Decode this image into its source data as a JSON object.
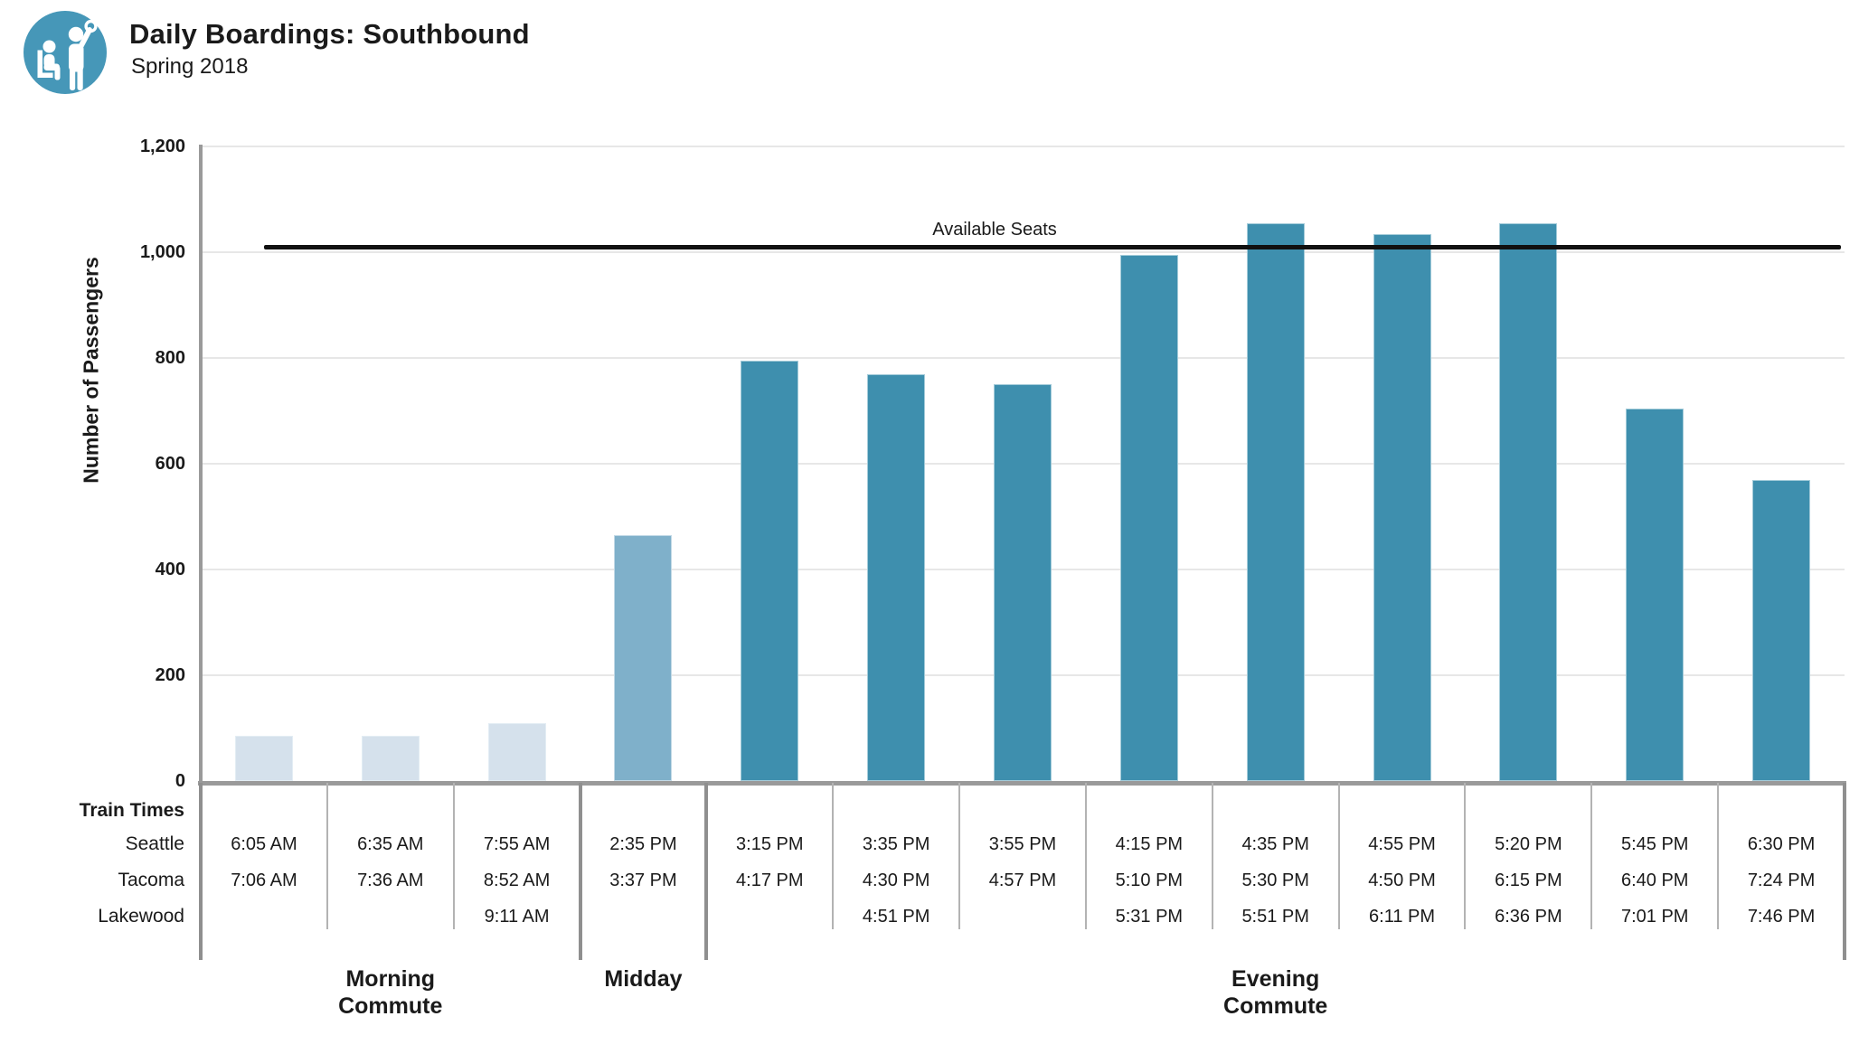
{
  "header": {
    "title": "Daily Boardings: Southbound",
    "subtitle": "Spring 2018",
    "logo_icon": "transit-passengers-icon"
  },
  "colors": {
    "bar_dark": "#3e8fae",
    "bar_medium": "#7fb0ca",
    "bar_light": "#d5e1ec",
    "logo_blue": "#4697b8",
    "reference_line": "#111111",
    "axis_gray": "#9a9a9a",
    "grid_gray": "#e7e7e7"
  },
  "table": {
    "corner_label": "Train Times",
    "row_labels": [
      "Seattle",
      "Tacoma",
      "Lakewood"
    ]
  },
  "chart_data": {
    "type": "bar",
    "title": "Daily Boardings: Southbound",
    "subtitle": "Spring 2018",
    "ylabel": "Number of Passengers",
    "xlabel": "Train Times",
    "ylim": [
      0,
      1200
    ],
    "ytick_step": 200,
    "ytick_labels": [
      "0",
      "200",
      "400",
      "600",
      "800",
      "1,000",
      "1,200"
    ],
    "grid": true,
    "legend": "none",
    "reference_line": {
      "label": "Available Seats",
      "value": 1010
    },
    "groups": [
      {
        "label_lines": [
          "Morning",
          "Commute"
        ],
        "bar_count": 3
      },
      {
        "label_lines": [
          "Midday"
        ],
        "bar_count": 1
      },
      {
        "label_lines": [
          "Evening",
          "Commute"
        ],
        "bar_count": 9
      }
    ],
    "bars": [
      {
        "seattle": "6:05 AM",
        "tacoma": "7:06 AM",
        "lakewood": "",
        "value": 85,
        "shade": "light"
      },
      {
        "seattle": "6:35 AM",
        "tacoma": "7:36 AM",
        "lakewood": "",
        "value": 85,
        "shade": "light"
      },
      {
        "seattle": "7:55 AM",
        "tacoma": "8:52 AM",
        "lakewood": "9:11 AM",
        "value": 110,
        "shade": "light"
      },
      {
        "seattle": "2:35 PM",
        "tacoma": "3:37 PM",
        "lakewood": "",
        "value": 465,
        "shade": "medium"
      },
      {
        "seattle": "3:15 PM",
        "tacoma": "4:17 PM",
        "lakewood": "",
        "value": 795,
        "shade": "dark"
      },
      {
        "seattle": "3:35 PM",
        "tacoma": "4:30 PM",
        "lakewood": "4:51 PM",
        "value": 770,
        "shade": "dark"
      },
      {
        "seattle": "3:55 PM",
        "tacoma": "4:57 PM",
        "lakewood": "",
        "value": 750,
        "shade": "dark"
      },
      {
        "seattle": "4:15 PM",
        "tacoma": "5:10 PM",
        "lakewood": "5:31 PM",
        "value": 995,
        "shade": "dark"
      },
      {
        "seattle": "4:35 PM",
        "tacoma": "5:30 PM",
        "lakewood": "5:51 PM",
        "value": 1055,
        "shade": "dark"
      },
      {
        "seattle": "4:55 PM",
        "tacoma": "4:50 PM",
        "lakewood": "6:11 PM",
        "value": 1035,
        "shade": "dark"
      },
      {
        "seattle": "5:20 PM",
        "tacoma": "6:15 PM",
        "lakewood": "6:36 PM",
        "value": 1055,
        "shade": "dark"
      },
      {
        "seattle": "5:45 PM",
        "tacoma": "6:40 PM",
        "lakewood": "7:01 PM",
        "value": 705,
        "shade": "dark"
      },
      {
        "seattle": "6:30 PM",
        "tacoma": "7:24 PM",
        "lakewood": "7:46 PM",
        "value": 570,
        "shade": "dark"
      }
    ]
  }
}
